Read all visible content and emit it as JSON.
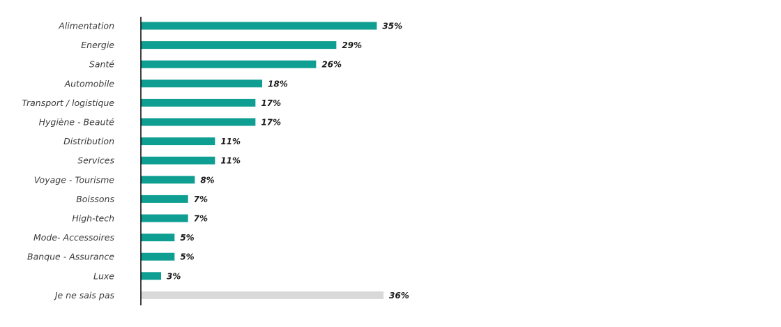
{
  "colors": {
    "bar": "#0e9e92",
    "bar_neutral": "#d9d9d9",
    "axis": "#000000"
  },
  "chart_data": {
    "type": "bar",
    "orientation": "horizontal",
    "categories": [
      "Alimentation",
      "Energie",
      "Santé",
      "Automobile",
      "Transport / logistique",
      "Hygiène - Beauté",
      "Distribution",
      "Services",
      "Voyage - Tourisme",
      "Boissons",
      "High-tech",
      "Mode- Accessoires",
      "Banque - Assurance",
      "Luxe",
      "Je ne sais pas"
    ],
    "values": [
      35,
      29,
      26,
      18,
      17,
      17,
      11,
      11,
      8,
      7,
      7,
      5,
      5,
      3,
      36
    ],
    "value_labels": [
      "35%",
      "29%",
      "26%",
      "18%",
      "17%",
      "17%",
      "11%",
      "11%",
      "8%",
      "7%",
      "7%",
      "5%",
      "5%",
      "3%",
      "36%"
    ],
    "neutral_category": "Je ne sais pas",
    "xlim": [
      0,
      36
    ],
    "grid": false,
    "legend": "none"
  }
}
